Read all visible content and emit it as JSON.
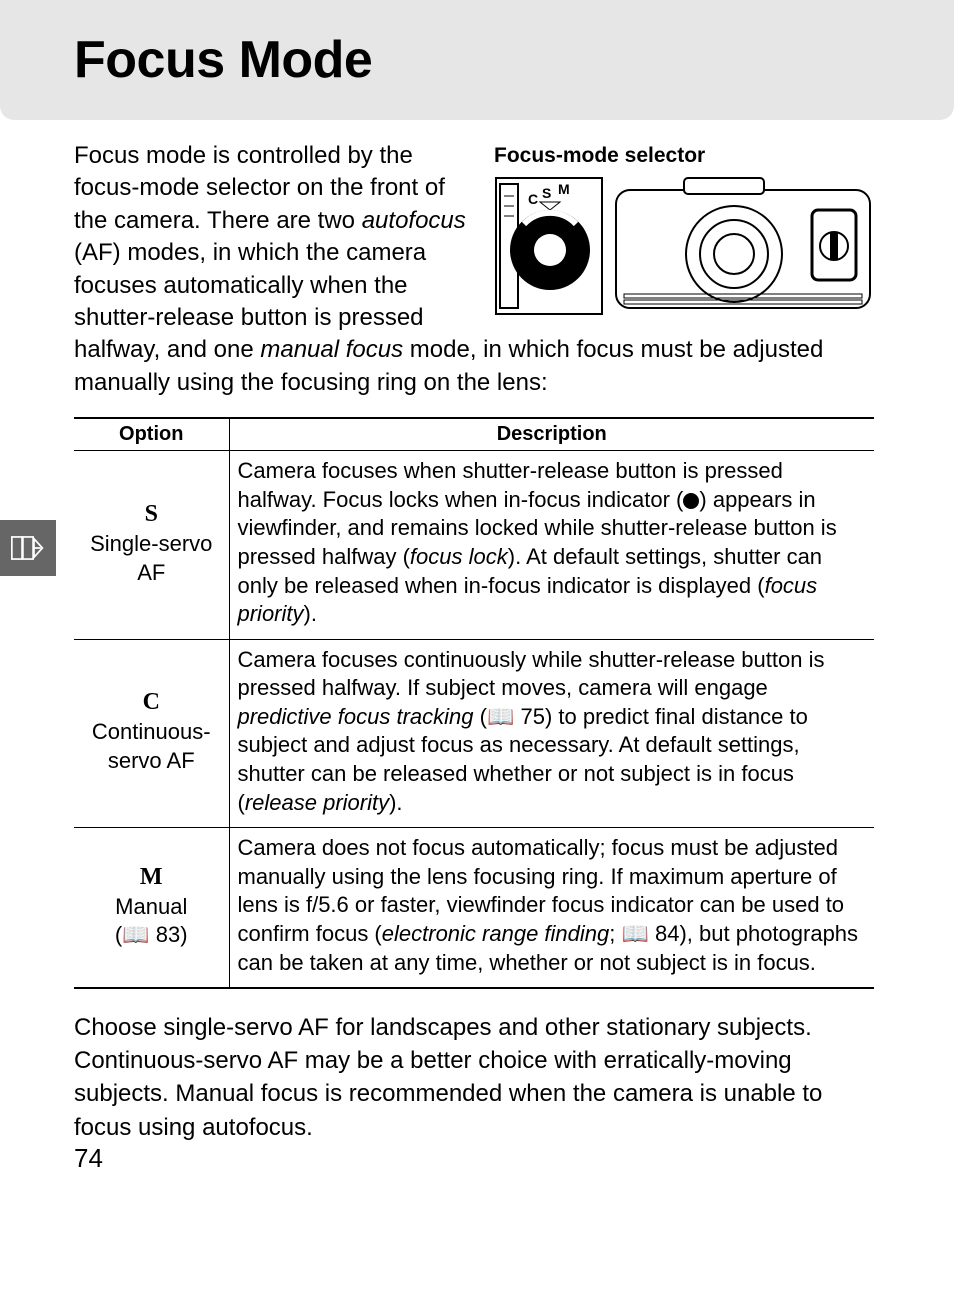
{
  "header": {
    "title": "Focus Mode"
  },
  "selector": {
    "caption": "Focus-mode selector"
  },
  "intro": {
    "part1": "Focus mode is controlled by the focus-mode selector on the front of the camera.  There are two ",
    "em1": "autofocus",
    "part2": " (AF) modes, in which the camera focuses automatically when the shutter-release button is pressed halfway, and one ",
    "em2": "manual focus",
    "part3": " mode, in which focus must be adjusted manually using the focusing ring on the lens:"
  },
  "table": {
    "head_option": "Option",
    "head_description": "Description",
    "rows": [
      {
        "symbol": "S",
        "name": "Single-servo AF",
        "ref": "",
        "desc_parts": [
          {
            "t": "Camera focuses when shutter-release button is pressed halfway.  Focus locks when in-focus indicator ("
          },
          {
            "dot": true
          },
          {
            "t": ") appears in viewfinder, and remains locked while shutter-release button is pressed halfway ("
          },
          {
            "em": "focus lock"
          },
          {
            "t": ").  At default settings, shutter can only be released when in-focus indicator is displayed ("
          },
          {
            "em": "focus priority"
          },
          {
            "t": ")."
          }
        ]
      },
      {
        "symbol": "C",
        "name": "Continuous-servo AF",
        "ref": "",
        "desc_parts": [
          {
            "t": "Camera focuses continuously while shutter-release button is pressed halfway.  If subject moves, camera will engage "
          },
          {
            "em": "predictive focus tracking"
          },
          {
            "t": " ("
          },
          {
            "book": "📖"
          },
          {
            "t": " 75) to predict final distance to subject and adjust focus as necessary.  At default settings, shutter can be released whether or not subject is in focus ("
          },
          {
            "em": "release priority"
          },
          {
            "t": ")."
          }
        ]
      },
      {
        "symbol": "M",
        "name": "Manual",
        "ref": "(📖 83)",
        "desc_parts": [
          {
            "t": "Camera does not focus automatically; focus must be adjusted manually using the lens focusing ring.  If maximum aperture of lens is f/5.6 or faster, viewfinder focus indicator can be used to confirm focus ("
          },
          {
            "em": "electronic range finding"
          },
          {
            "t": "; "
          },
          {
            "book": "📖"
          },
          {
            "t": " 84), but photographs can be taken at any time, whether or not subject is in focus."
          }
        ]
      }
    ]
  },
  "outro": "Choose single-servo AF for landscapes and other stationary subjects.  Continuous-servo AF may be a better choice with erratically-moving subjects.  Manual focus is recommended when the camera is unable to focus using autofocus.",
  "page_number": "74",
  "colors": {
    "header_bg": "#e6e6e6",
    "tab_bg": "#666666",
    "text": "#000000"
  }
}
